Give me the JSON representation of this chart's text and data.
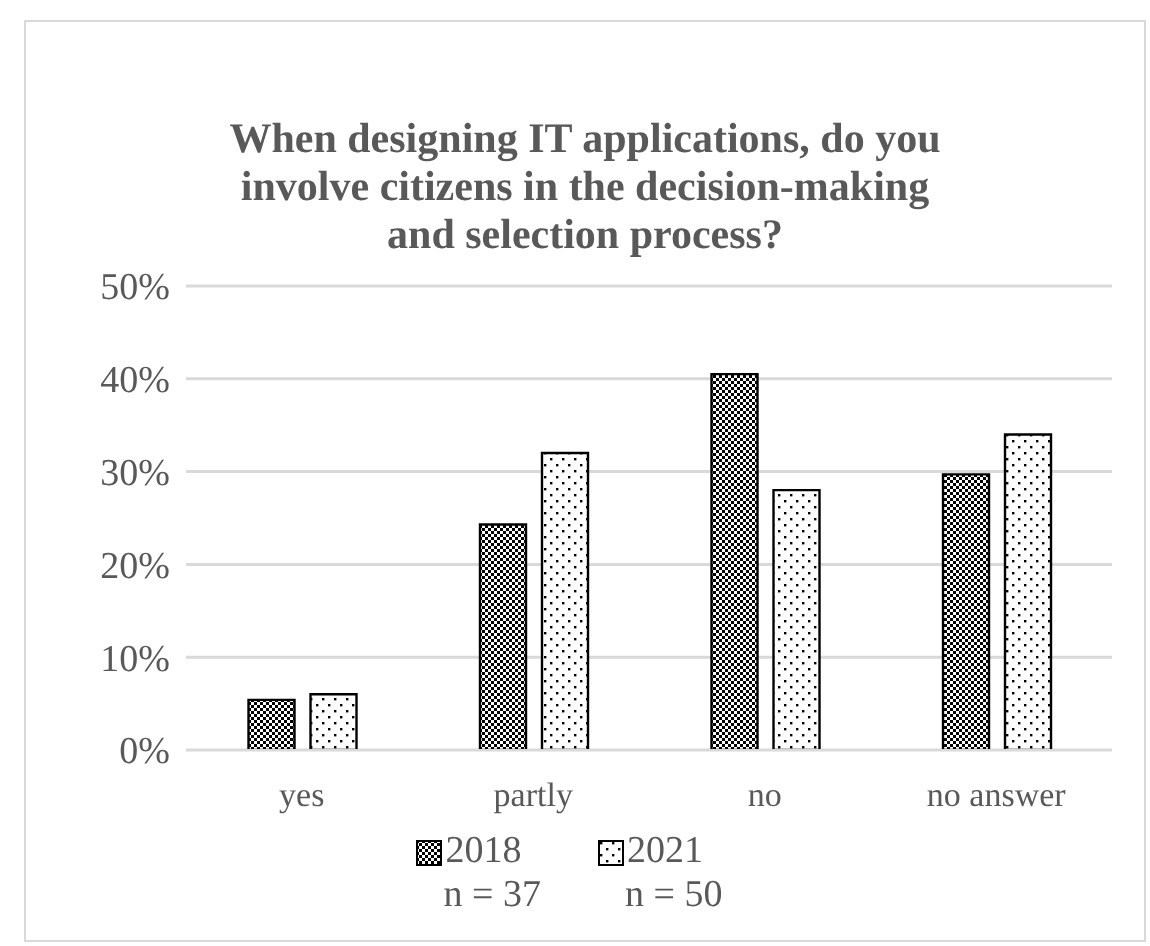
{
  "chart_data": {
    "type": "bar",
    "title": "When designing IT applications, do you involve citizens in the decision-making and selection process?",
    "categories": [
      "yes",
      "partly",
      "no",
      "no answer"
    ],
    "series": [
      {
        "name": "2018",
        "color": "#000000",
        "values": [
          5.4,
          24.3,
          40.5,
          29.7
        ]
      },
      {
        "name": "2021",
        "color": "#000000",
        "values": [
          6,
          32,
          28,
          34
        ]
      }
    ],
    "ylim": [
      0,
      50
    ],
    "yticks": [
      {
        "value": 0,
        "label": "0%"
      },
      {
        "value": 10,
        "label": "10%"
      },
      {
        "value": 20,
        "label": "20%"
      },
      {
        "value": 30,
        "label": "30%"
      },
      {
        "value": 40,
        "label": "40%"
      },
      {
        "value": 50,
        "label": "50%"
      }
    ],
    "grid": "y",
    "legend": "bottom",
    "annotations": [
      "n = 37",
      "n = 50"
    ]
  }
}
